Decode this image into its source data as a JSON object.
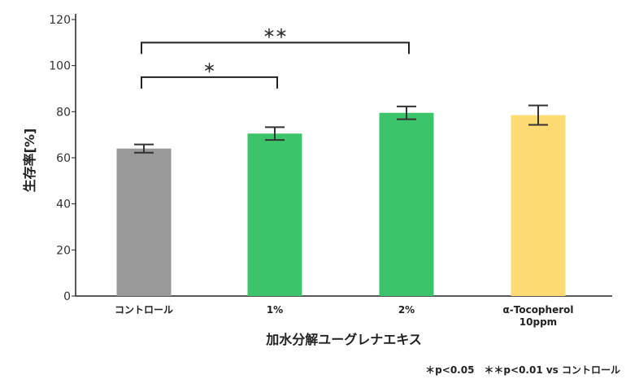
{
  "chart_data": {
    "type": "bar",
    "title": "",
    "xlabel": "加水分解ユーグレナエキス",
    "ylabel": "生存率[%]",
    "ylim": [
      0,
      120
    ],
    "yticks": [
      0,
      20,
      40,
      60,
      80,
      100,
      120
    ],
    "categories": [
      "コントロール",
      "1%",
      "2%",
      "α-Tocopherol 10ppm"
    ],
    "category_lines": [
      [
        "コントロール"
      ],
      [
        "1%"
      ],
      [
        "2%"
      ],
      [
        "α-Tocopherol",
        "10ppm"
      ]
    ],
    "values": [
      64,
      70.5,
      79.5,
      78.5
    ],
    "errors": [
      1.8,
      2.8,
      2.8,
      4.2
    ],
    "colors": [
      "#999999",
      "#3cc46b",
      "#3cc46b",
      "#fcdb72"
    ],
    "grid": false,
    "significance": [
      {
        "from": 0,
        "to": 1,
        "label": "＊",
        "y": 95
      },
      {
        "from": 0,
        "to": 2,
        "label": "＊＊",
        "y": 110
      }
    ],
    "footnote": "＊p<0.05　＊＊p<0.01 vs コントロール"
  }
}
